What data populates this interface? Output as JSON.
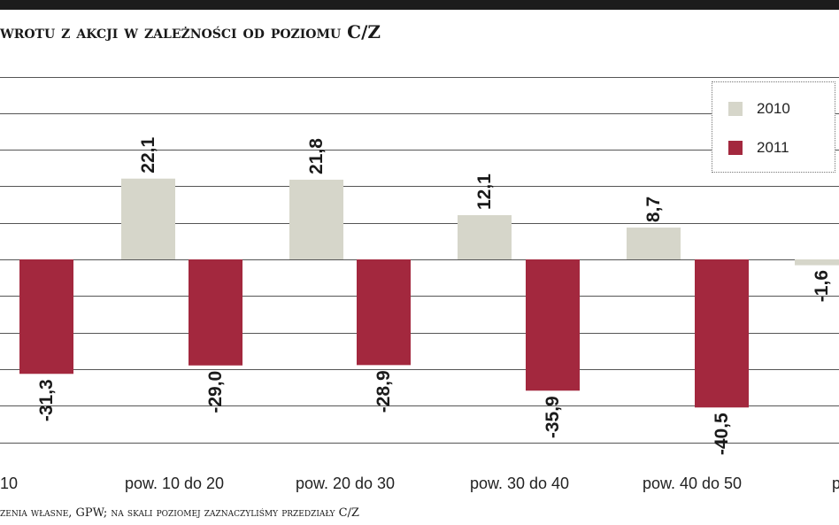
{
  "title": "wrotu z akcji w zależności od poziomu C/Z",
  "source": "zenia własne, GPW; na skali poziomej zaznaczyliśmy przedziały C/Z",
  "colors": {
    "s2010": "#d6d6ca",
    "s2011": "#a3283e",
    "grid": "#555555"
  },
  "chart_data": {
    "type": "bar",
    "categories": [
      "10",
      "pow. 10 do 20",
      "pow. 20 do 30",
      "pow. 30 do 40",
      "pow. 40 do 50",
      "p"
    ],
    "series": [
      {
        "name": "2010",
        "values": [
          null,
          22.1,
          21.8,
          12.1,
          8.7,
          -1.6
        ]
      },
      {
        "name": "2011",
        "values": [
          -31.3,
          -29.0,
          -28.9,
          -35.9,
          -40.5,
          null
        ]
      }
    ],
    "data_labels": [
      [
        null,
        "22,1",
        "21,8",
        "12,1",
        "8,7",
        "-1,6"
      ],
      [
        "-31,3",
        "-29,0",
        "-28,9",
        "-35,9",
        "-40,5",
        null
      ]
    ],
    "ylim": [
      -50,
      50
    ],
    "grid": true,
    "legend_position": "top-right"
  }
}
